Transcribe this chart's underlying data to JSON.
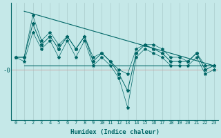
{
  "xlabel": "Humidex (Indice chaleur)",
  "ylabel": "-0",
  "bg_color": "#c5e8e8",
  "line_color": "#006666",
  "grid_color": "#aacccc",
  "x": [
    0,
    1,
    2,
    3,
    4,
    5,
    6,
    7,
    8,
    9,
    10,
    11,
    12,
    13,
    14,
    15,
    16,
    17,
    18,
    19,
    20,
    21,
    22,
    23
  ],
  "y_main": [
    3,
    3,
    11,
    6,
    8,
    5,
    8,
    5,
    8,
    2,
    4,
    2,
    -1,
    -5,
    4,
    6,
    5,
    4,
    2,
    2,
    2,
    4,
    0,
    1
  ],
  "y_upper": [
    3,
    3,
    13,
    7,
    9,
    6,
    8,
    5,
    8,
    3,
    4,
    2,
    0,
    -1,
    5,
    6,
    6,
    5,
    3,
    3,
    2,
    4,
    1,
    1
  ],
  "y_lower": [
    3,
    2,
    9,
    5,
    7,
    3,
    7,
    3,
    7,
    1,
    3,
    1,
    -2,
    -9,
    3,
    5,
    4,
    3,
    1,
    1,
    1,
    3,
    -1,
    0
  ],
  "env_top_start": 14,
  "env_top_end": 1,
  "env_bot_start": 1,
  "env_bot_end": 1,
  "env_x_start": 1,
  "env_x_end": 23,
  "ylim": [
    -12,
    16
  ],
  "xlim": [
    -0.5,
    23.5
  ],
  "figsize": [
    3.2,
    2.0
  ],
  "dpi": 100
}
